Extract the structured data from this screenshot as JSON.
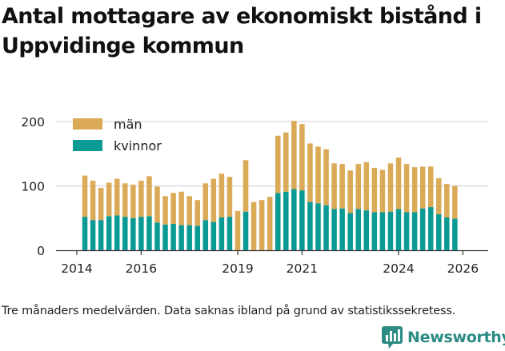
{
  "title": "Antal mottagare av ekonomiskt bistånd i Uppvidinge kommun",
  "footnote": "Tre månaders medelvärden. Data saknas ibland på grund av statistikssekretess.",
  "brand": {
    "name": "Newsworthy",
    "color": "#2c8b83"
  },
  "colors": {
    "men": "#dbaa57",
    "women": "#0a9a94",
    "grid": "#dddddd"
  },
  "chart_data": {
    "type": "bar",
    "stacked": true,
    "title": "Antal mottagare av ekonomiskt bistånd i Uppvidinge kommun",
    "xlabel": "",
    "ylabel": "",
    "ylim": [
      0,
      200
    ],
    "yticks": [
      {
        "value": 0,
        "label": "0"
      },
      {
        "value": 100,
        "label": "100"
      },
      {
        "value": 200,
        "label": "200"
      }
    ],
    "xlim": [
      2013.8,
      2026.5
    ],
    "xticks": [
      {
        "value": 2014,
        "label": "2014"
      },
      {
        "value": 2016,
        "label": "2016"
      },
      {
        "value": 2019,
        "label": "2019"
      },
      {
        "value": 2021,
        "label": "2021"
      },
      {
        "value": 2024,
        "label": "2024"
      },
      {
        "value": 2026,
        "label": "2026"
      }
    ],
    "legend": {
      "position": "top-left",
      "entries": [
        {
          "name": "män",
          "color": "#dbaa57"
        },
        {
          "name": "kvinnor",
          "color": "#0a9a94"
        }
      ]
    },
    "x": [
      2014.25,
      2014.5,
      2014.75,
      2015.0,
      2015.25,
      2015.5,
      2015.75,
      2016.0,
      2016.25,
      2016.5,
      2016.75,
      2017.0,
      2017.25,
      2017.5,
      2017.75,
      2018.0,
      2018.25,
      2018.5,
      2018.75,
      2019.0,
      2019.25,
      2019.5,
      2019.75,
      2020.0,
      2020.25,
      2020.5,
      2020.75,
      2021.0,
      2021.25,
      2021.5,
      2021.75,
      2022.0,
      2022.25,
      2022.5,
      2022.75,
      2023.0,
      2023.25,
      2023.5,
      2023.75,
      2024.0,
      2024.25,
      2024.5,
      2024.75,
      2025.0,
      2025.25,
      2025.5,
      2025.75,
      2026.0
    ],
    "series": [
      {
        "name": "kvinnor",
        "color": "#0a9a94",
        "values": [
          52,
          47,
          47,
          53,
          54,
          52,
          50,
          52,
          53,
          43,
          40,
          41,
          39,
          39,
          38,
          47,
          44,
          51,
          52,
          null,
          60,
          null,
          null,
          null,
          89,
          91,
          95,
          93,
          75,
          73,
          70,
          64,
          65,
          58,
          64,
          62,
          59,
          59,
          60,
          64,
          59,
          59,
          65,
          67,
          56,
          51,
          49,
          null
        ]
      },
      {
        "name": "män",
        "color": "#dbaa57",
        "values": [
          64,
          61,
          50,
          52,
          57,
          52,
          52,
          56,
          62,
          56,
          44,
          48,
          52,
          45,
          40,
          57,
          67,
          68,
          62,
          61,
          80,
          75,
          78,
          83,
          89,
          92,
          106,
          103,
          91,
          88,
          87,
          71,
          69,
          66,
          70,
          75,
          69,
          66,
          75,
          80,
          75,
          70,
          65,
          63,
          56,
          52,
          51,
          null
        ]
      }
    ]
  }
}
